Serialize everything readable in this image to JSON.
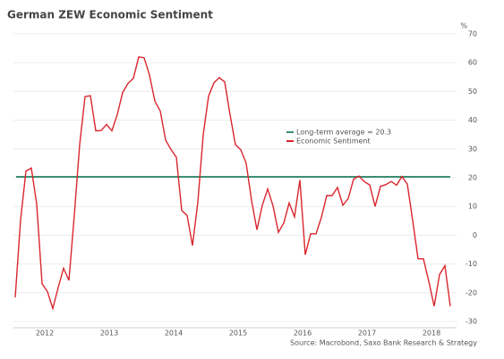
{
  "chart_data": {
    "type": "line",
    "title": "German ZEW Economic Sentiment",
    "y_unit": "%",
    "source": "Source: Macrobond, Saxo Bank Research & Strategy",
    "categories": [
      null,
      null,
      null,
      null,
      null,
      null,
      "2012",
      null,
      null,
      null,
      null,
      null,
      null,
      null,
      null,
      null,
      null,
      null,
      "2013",
      null,
      null,
      null,
      null,
      null,
      null,
      null,
      null,
      null,
      null,
      null,
      "2014",
      null,
      null,
      null,
      null,
      null,
      null,
      null,
      null,
      null,
      null,
      null,
      "2015",
      null,
      null,
      null,
      null,
      null,
      null,
      null,
      null,
      null,
      null,
      null,
      "2016",
      null,
      null,
      null,
      null,
      null,
      null,
      null,
      null,
      null,
      null,
      null,
      "2017",
      null,
      null,
      null,
      null,
      null,
      null,
      null,
      null,
      null,
      null,
      null,
      "2018",
      null,
      null,
      null
    ],
    "series": [
      {
        "name": "Economic Sentiment",
        "color": "#d9262e",
        "values": [
          -21.6,
          5.4,
          22.3,
          23.4,
          10.8,
          -16.9,
          -19.6,
          -25.5,
          -18.2,
          -11.5,
          -15.7,
          6.9,
          31.5,
          48.2,
          48.5,
          36.3,
          36.4,
          38.5,
          36.3,
          42.0,
          49.6,
          52.8,
          54.6,
          62.0,
          61.7,
          55.7,
          46.6,
          43.2,
          33.1,
          29.8,
          27.1,
          8.6,
          6.9,
          -3.6,
          11.5,
          34.9,
          48.4,
          53.0,
          54.8,
          53.3,
          41.9,
          31.5,
          29.7,
          25.0,
          12.1,
          1.9,
          10.4,
          16.1,
          10.2,
          1.0,
          4.3,
          11.2,
          6.4,
          19.2,
          -6.8,
          0.5,
          0.5,
          6.2,
          13.8,
          13.8,
          16.6,
          10.4,
          12.8,
          19.5,
          20.6,
          18.6,
          17.5,
          10.0,
          17.0,
          17.6,
          18.7,
          17.4,
          20.4,
          17.8,
          5.1,
          -8.2,
          -8.2,
          -16.1,
          -24.7,
          -13.7,
          -10.6,
          -24.7
        ]
      }
    ],
    "reference_line": {
      "name": "Long-term average = 20.3",
      "value": 20.3,
      "color": "#3c8f72"
    },
    "ylim": [
      -30,
      70
    ],
    "yticks": [
      -30,
      -20,
      -10,
      0,
      10,
      20,
      30,
      40,
      50,
      60,
      70
    ],
    "grid": true
  }
}
